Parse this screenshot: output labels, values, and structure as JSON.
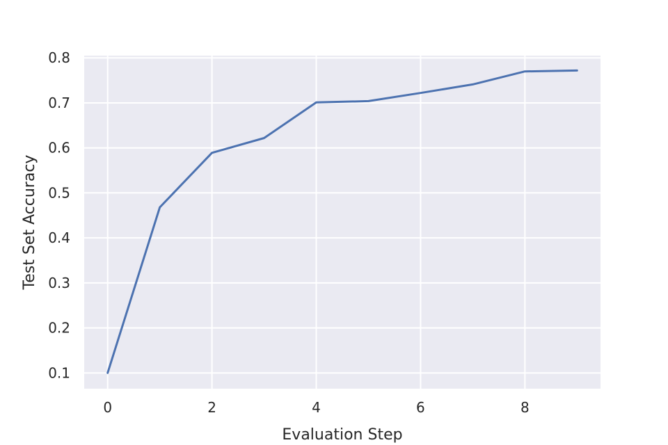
{
  "chart_data": {
    "type": "line",
    "title": "",
    "xlabel": "Evaluation Step",
    "ylabel": "Test Set Accuracy",
    "xlim": [
      -0.45,
      9.45
    ],
    "ylim": [
      0.065,
      0.805
    ],
    "xticks": [
      0,
      2,
      4,
      6,
      8
    ],
    "xtick_labels": [
      "0",
      "2",
      "4",
      "6",
      "8"
    ],
    "yticks": [
      0.1,
      0.2,
      0.3,
      0.4,
      0.5,
      0.6,
      0.7,
      0.8
    ],
    "ytick_labels": [
      "0.1",
      "0.2",
      "0.3",
      "0.4",
      "0.5",
      "0.6",
      "0.7",
      "0.8"
    ],
    "grid": true,
    "legend": false,
    "series": [
      {
        "color": "#4c72b0",
        "x": [
          0,
          1,
          2,
          3,
          4,
          5,
          6,
          7,
          8,
          9
        ],
        "y": [
          0.1,
          0.468,
          0.589,
          0.622,
          0.701,
          0.704,
          0.722,
          0.741,
          0.77,
          0.772
        ]
      }
    ],
    "colors": {
      "plot_background": "#eaeaf2",
      "grid": "#ffffff",
      "text": "#262626"
    }
  }
}
